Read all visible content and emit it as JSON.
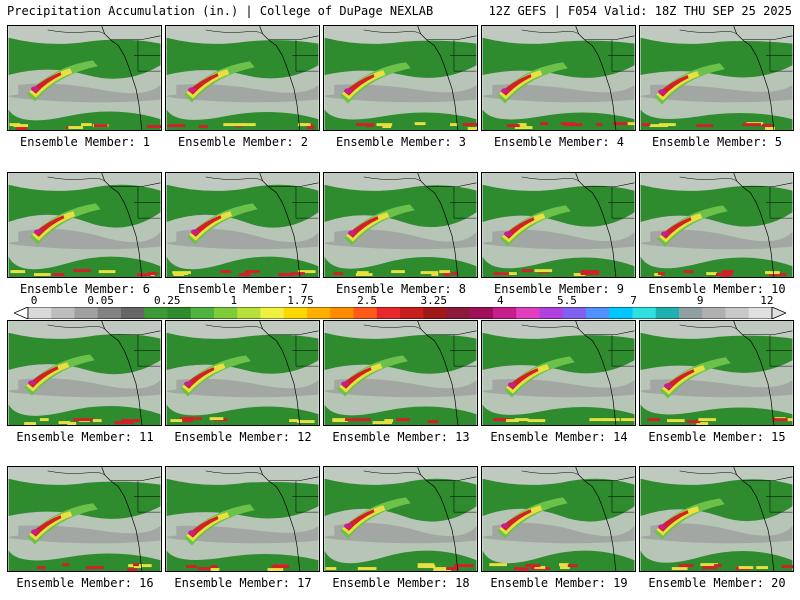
{
  "header": {
    "title": "Precipitation Accumulation (in.) | College of DuPage NEXLAB",
    "run_info": "12Z GEFS | F054 Valid: 18Z THU SEP 25 2025"
  },
  "panels": [
    {
      "label": "Ensemble Member: 1"
    },
    {
      "label": "Ensemble Member: 2"
    },
    {
      "label": "Ensemble Member: 3"
    },
    {
      "label": "Ensemble Member: 4"
    },
    {
      "label": "Ensemble Member: 5"
    },
    {
      "label": "Ensemble Member: 6"
    },
    {
      "label": "Ensemble Member: 7"
    },
    {
      "label": "Ensemble Member: 8"
    },
    {
      "label": "Ensemble Member: 9"
    },
    {
      "label": "Ensemble Member: 10"
    },
    {
      "label": "Ensemble Member: 11"
    },
    {
      "label": "Ensemble Member: 12"
    },
    {
      "label": "Ensemble Member: 13"
    },
    {
      "label": "Ensemble Member: 14"
    },
    {
      "label": "Ensemble Member: 15"
    },
    {
      "label": "Ensemble Member: 16"
    },
    {
      "label": "Ensemble Member: 17"
    },
    {
      "label": "Ensemble Member: 18"
    },
    {
      "label": "Ensemble Member: 19"
    },
    {
      "label": "Ensemble Member: 20"
    }
  ],
  "colorbar": {
    "labels": [
      "0",
      "0.05",
      "0.25",
      "1",
      "1.75",
      "2.5",
      "3.25",
      "4",
      "5.5",
      "7",
      "9",
      "12"
    ],
    "colors": [
      "#d9d9d9",
      "#bdbdbd",
      "#a0a0a0",
      "#828282",
      "#666666",
      "#3d9b35",
      "#2e8b2e",
      "#4fb342",
      "#7fcc3a",
      "#b8e03a",
      "#f0f040",
      "#ffd700",
      "#ffb000",
      "#ff8c00",
      "#ff5a1a",
      "#e8282a",
      "#c81e1e",
      "#a01818",
      "#8b1a3a",
      "#a0105a",
      "#c81e8c",
      "#e040c0",
      "#b040e0",
      "#8060f0",
      "#5090ff",
      "#00c8ff",
      "#30e0e0",
      "#20b0b0",
      "#90a0a0",
      "#b0b0b0",
      "#c8c8c8",
      "#e0e0e0"
    ]
  },
  "map_colors": {
    "green": "#2e8b2e",
    "light_green": "#6cc14a",
    "yellow": "#e8e040",
    "red": "#d0202a",
    "magenta": "#c81e8c",
    "gray": "#9a9a9a",
    "light_gray": "#cfcfcf"
  }
}
